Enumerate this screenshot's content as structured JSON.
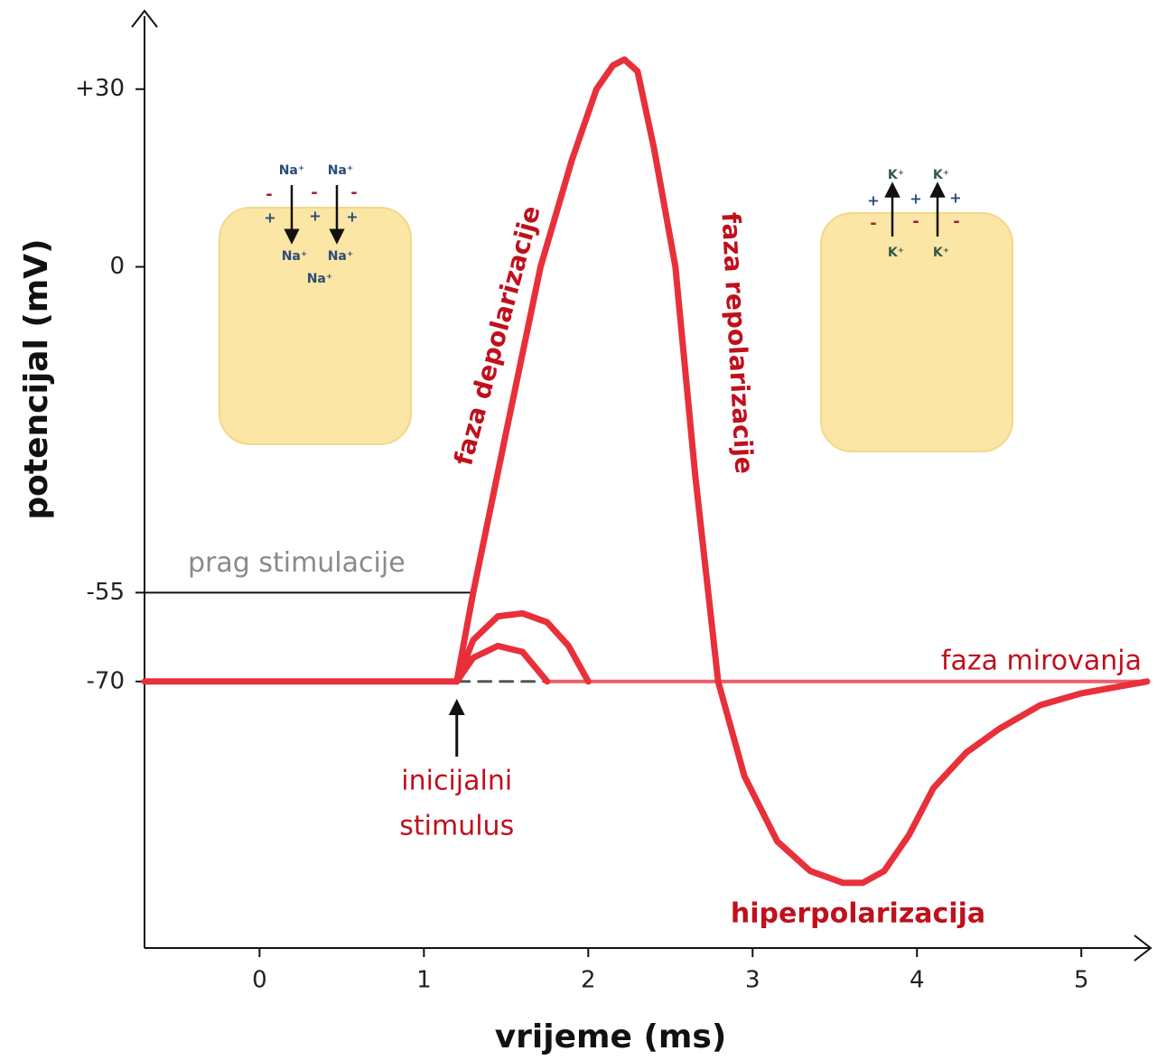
{
  "chart_data": {
    "type": "line",
    "xlabel": "vrijeme (ms)",
    "ylabel": "potencijal (mV)",
    "xlim": [
      -0.7,
      5.4
    ],
    "ylim": [
      -115,
      42
    ],
    "xticks": [
      0,
      1,
      2,
      3,
      4,
      5
    ],
    "yticks": [
      {
        "value": 30,
        "label": "+30"
      },
      0,
      -55,
      -70
    ],
    "series": [
      {
        "color": "#e8303a",
        "style": "solid",
        "x": [
          -0.7,
          1.2,
          1.3,
          1.5,
          1.71,
          1.9,
          2.05,
          2.15,
          2.22,
          2.3,
          2.4,
          2.53,
          2.65,
          2.79,
          2.95,
          3.15,
          3.35,
          3.55,
          3.67,
          3.8,
          3.95,
          4.1,
          4.3,
          4.5,
          4.75,
          5.0,
          5.2,
          5.4
        ],
        "values": [
          -70,
          -70,
          -55,
          -28,
          0,
          18,
          30,
          34,
          35,
          33,
          20,
          0,
          -35,
          -70,
          -86,
          -97,
          -102,
          -104,
          -104,
          -102,
          -96,
          -88,
          -82,
          -78,
          -74,
          -72,
          -71,
          -70
        ]
      },
      {
        "color": "#e8303a",
        "style": "solid",
        "x": [
          1.2,
          1.3,
          1.45,
          1.6,
          1.75,
          1.88,
          2.0
        ],
        "values": [
          -70,
          -63,
          -59,
          -58.5,
          -60,
          -64,
          -70
        ]
      },
      {
        "color": "#e8303a",
        "style": "solid",
        "x": [
          1.2,
          1.3,
          1.45,
          1.6,
          1.75
        ],
        "values": [
          -70,
          -66,
          -64,
          -65,
          -70
        ]
      },
      {
        "color": "#555555",
        "style": "dashed",
        "x": [
          1.2,
          5.4
        ],
        "values": [
          -70,
          -70
        ]
      },
      {
        "color": "#e8606a",
        "style": "thin",
        "x": [
          1.75,
          5.4
        ],
        "values": [
          -70,
          -70
        ]
      }
    ],
    "threshold": {
      "value": -55,
      "label": "prag stimulacije"
    },
    "stimulus": {
      "x": 1.2,
      "label": [
        "inicijalni",
        "stimulus"
      ]
    },
    "annotations": {
      "depolarization": "faza depolarizacije",
      "repolarization": "faza repolarizacije",
      "resting": "faza mirovanja",
      "hyperpolarization": "hiperpolarizacija"
    },
    "cell_left": {
      "ions_out": [
        "Na⁺",
        "Na⁺"
      ],
      "ions_in": [
        "Na⁺",
        "Na⁺",
        "Na⁺"
      ],
      "outer_charges": [
        "-",
        "-",
        "-"
      ],
      "inner_charges": [
        "+",
        "+",
        "+"
      ]
    },
    "cell_right": {
      "ions_out": [
        "K⁺",
        "K⁺"
      ],
      "ions_in": [
        "K⁺",
        "K⁺"
      ],
      "outer_charges": [
        "+",
        "+",
        "+"
      ],
      "inner_charges": [
        "-",
        "-",
        "-"
      ]
    }
  }
}
